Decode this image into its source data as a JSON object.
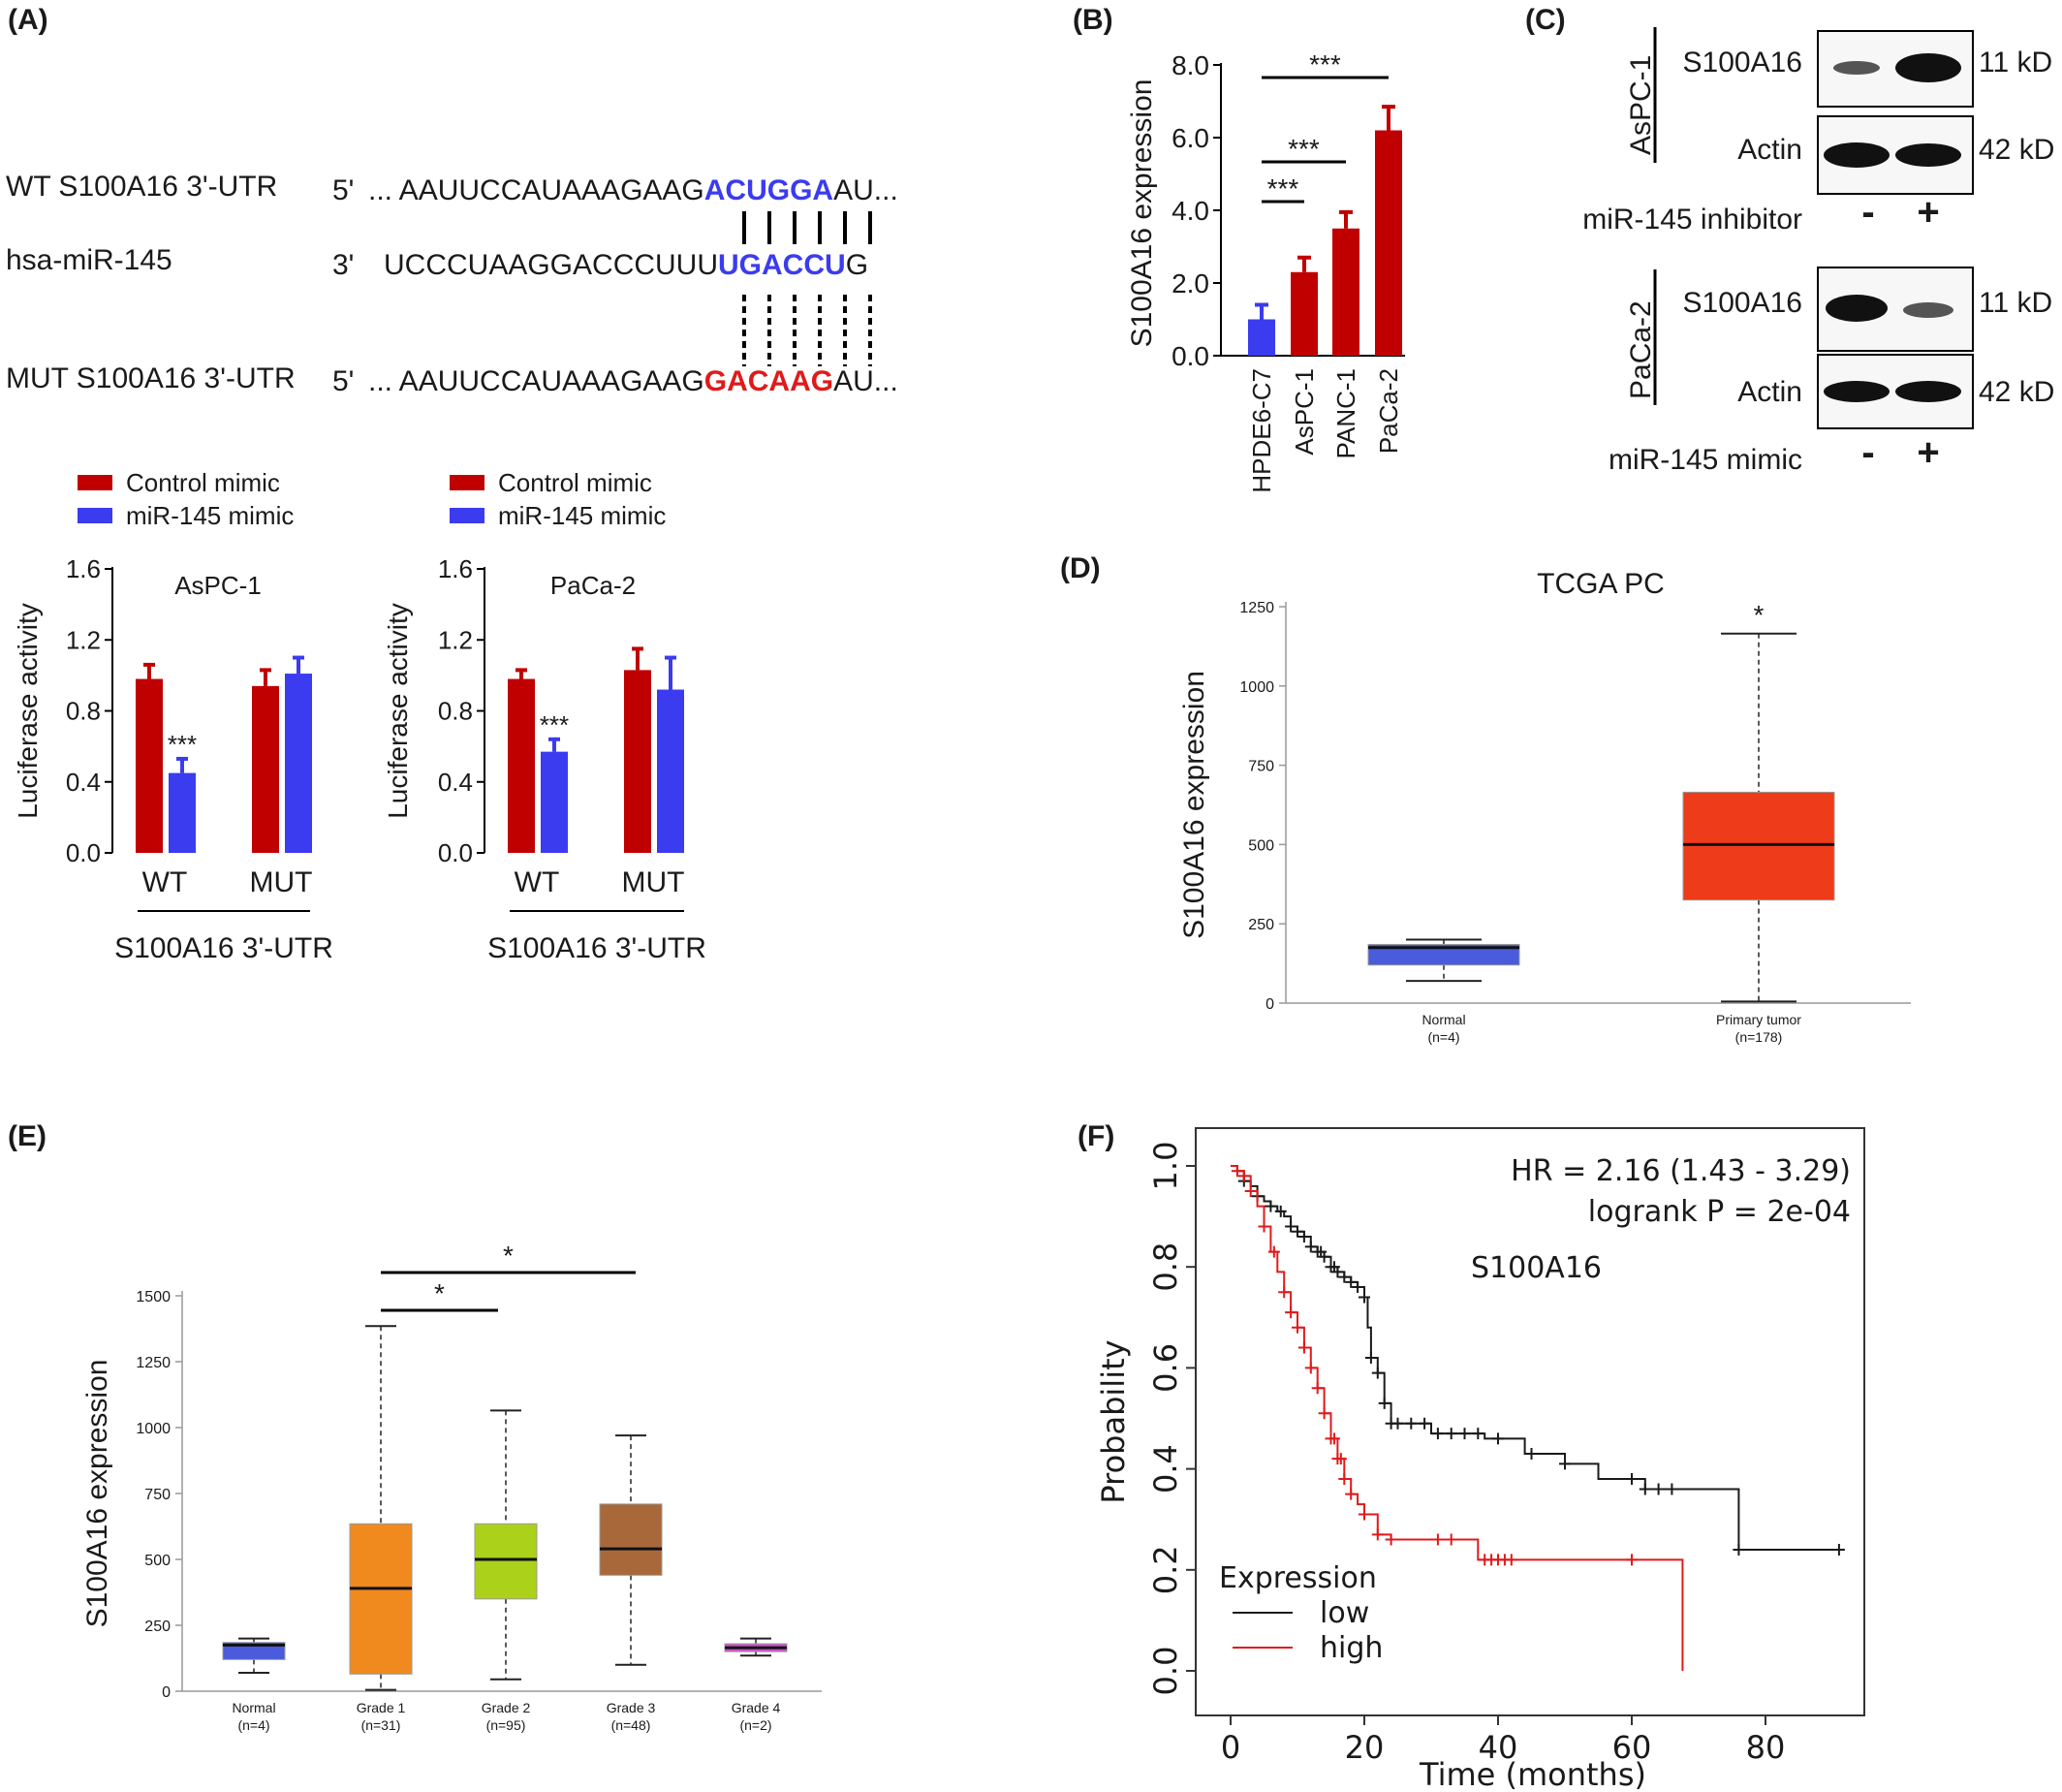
{
  "panels": {
    "A": "(A)",
    "B": "(B)",
    "C": "(C)",
    "D": "(D)",
    "E": "(E)",
    "F": "(F)"
  },
  "sequence": {
    "wt_label": "WT S100A16 3'-UTR",
    "wt_end": "5'",
    "wt_prefix": "... AAUUCCAUAAAGAAG",
    "wt_site": "ACUGGA",
    "wt_suffix": "AU...",
    "mir_label": "hsa-miR-145",
    "mir_end": "3'",
    "mir_prefix": "UCCCUAAGGACCCUUU",
    "mir_site": "UGACCU",
    "mir_suffix": "G",
    "mut_label": "MUT S100A16 3'-UTR",
    "mut_end": "5'",
    "mut_prefix": "... AAUUCCAUAAAGAAG",
    "mut_site": "GACAAG",
    "mut_suffix": "AU...",
    "colors": {
      "wt_site": "#3b3bf0",
      "mut_site": "#e01a1a"
    }
  },
  "chart_data": [
    {
      "id": "A-left",
      "type": "bar",
      "title": "AsPC-1",
      "ylabel": "Luciferase activity",
      "xlabel": "S100A16 3'-UTR",
      "ylim": [
        0,
        1.6
      ],
      "yticks": [
        "0.0",
        "0.4",
        "0.8",
        "1.2",
        "1.6"
      ],
      "categories": [
        "WT",
        "MUT"
      ],
      "series": [
        {
          "name": "Control mimic",
          "color": "#c00000",
          "values": [
            0.98,
            0.94
          ],
          "errors": [
            0.08,
            0.09
          ]
        },
        {
          "name": "miR-145 mimic",
          "color": "#3b3bf0",
          "values": [
            0.45,
            1.01
          ],
          "errors": [
            0.08,
            0.09
          ]
        }
      ],
      "annotations": [
        "***"
      ]
    },
    {
      "id": "A-right",
      "type": "bar",
      "title": "PaCa-2",
      "ylabel": "Luciferase activity",
      "xlabel": "S100A16 3'-UTR",
      "ylim": [
        0,
        1.6
      ],
      "yticks": [
        "0.0",
        "0.4",
        "0.8",
        "1.2",
        "1.6"
      ],
      "categories": [
        "WT",
        "MUT"
      ],
      "series": [
        {
          "name": "Control mimic",
          "color": "#c00000",
          "values": [
            0.98,
            1.03
          ],
          "errors": [
            0.05,
            0.12
          ]
        },
        {
          "name": "miR-145 mimic",
          "color": "#3b3bf0",
          "values": [
            0.57,
            0.92
          ],
          "errors": [
            0.07,
            0.18
          ]
        }
      ],
      "annotations": [
        "***"
      ]
    },
    {
      "id": "B",
      "type": "bar",
      "ylabel": "S100A16 expression",
      "ylim": [
        0,
        8.0
      ],
      "yticks": [
        "0.0",
        "2.0",
        "4.0",
        "6.0",
        "8.0"
      ],
      "categories": [
        "HPDE6-C7",
        "AsPC-1",
        "PANC-1",
        "PaCa-2"
      ],
      "values": [
        1.0,
        2.3,
        3.5,
        6.2
      ],
      "errors": [
        0.4,
        0.4,
        0.45,
        0.65
      ],
      "colors": [
        "#3b3bf0",
        "#c00000",
        "#c00000",
        "#c00000"
      ],
      "annotations": [
        "***",
        "***",
        "***"
      ]
    },
    {
      "id": "D",
      "type": "box",
      "title": "TCGA PC",
      "ylabel": "S100A16 expression",
      "ylim": [
        0,
        1250
      ],
      "yticks": [
        "0",
        "250",
        "500",
        "750",
        "1000",
        "1250"
      ],
      "groups": [
        {
          "name": "Normal",
          "n": "(n=4)",
          "color": "#4a5bdc",
          "min": 70,
          "q1": 120,
          "median": 175,
          "q3": 185,
          "max": 200
        },
        {
          "name": "Primary tumor",
          "n": "(n=178)",
          "color": "#ee3b1a",
          "min": 5,
          "q1": 325,
          "median": 500,
          "q3": 665,
          "max": 1165
        }
      ],
      "annotations": [
        "*"
      ]
    },
    {
      "id": "E",
      "type": "box",
      "ylabel": "S100A16 expression",
      "ylim": [
        0,
        1500
      ],
      "yticks": [
        "0",
        "250",
        "500",
        "750",
        "1000",
        "1250",
        "1500"
      ],
      "groups": [
        {
          "name": "Normal",
          "n": "(n=4)",
          "color": "#4a5bdc",
          "min": 70,
          "q1": 120,
          "median": 175,
          "q3": 185,
          "max": 200
        },
        {
          "name": "Grade 1",
          "n": "(n=31)",
          "color": "#f08a1e",
          "min": 5,
          "q1": 65,
          "median": 390,
          "q3": 635,
          "max": 1385
        },
        {
          "name": "Grade 2",
          "n": "(n=95)",
          "color": "#acd11a",
          "min": 45,
          "q1": 350,
          "median": 500,
          "q3": 635,
          "max": 1065
        },
        {
          "name": "Grade 3",
          "n": "(n=48)",
          "color": "#a8683a",
          "min": 100,
          "q1": 440,
          "median": 540,
          "q3": 710,
          "max": 970
        },
        {
          "name": "Grade 4",
          "n": "(n=2)",
          "color": "#d04fd0",
          "min": 135,
          "q1": 150,
          "median": 165,
          "q3": 180,
          "max": 200
        }
      ],
      "annotations": [
        "*",
        "*"
      ]
    },
    {
      "id": "F",
      "type": "line",
      "title": "S100A16",
      "ylabel": "Probability",
      "xlabel": "Time (months)",
      "xlim": [
        0,
        95
      ],
      "ylim": [
        0,
        1.0
      ],
      "xticks": [
        "0",
        "20",
        "40",
        "60",
        "80"
      ],
      "yticks": [
        "0.0",
        "0.2",
        "0.4",
        "0.6",
        "0.8",
        "1.0"
      ],
      "stats": [
        "HR = 2.16 (1.43 - 3.29)",
        "logrank P = 2e-04"
      ],
      "legend_title": "Expression",
      "series": [
        {
          "name": "low",
          "color": "#1a1a1a",
          "x": [
            0,
            1,
            2,
            3,
            4,
            5,
            6,
            7,
            8,
            9,
            10,
            11,
            12,
            13,
            14,
            15,
            16,
            17,
            18,
            19,
            20,
            20.5,
            21,
            22,
            23,
            24,
            26,
            30,
            34,
            38,
            44,
            50,
            55,
            62,
            67,
            72.5,
            76,
            80,
            85,
            91
          ],
          "y": [
            1.0,
            0.99,
            0.97,
            0.96,
            0.94,
            0.93,
            0.92,
            0.91,
            0.9,
            0.88,
            0.87,
            0.86,
            0.84,
            0.83,
            0.82,
            0.8,
            0.79,
            0.78,
            0.77,
            0.76,
            0.74,
            0.68,
            0.62,
            0.59,
            0.53,
            0.49,
            0.49,
            0.47,
            0.47,
            0.46,
            0.43,
            0.41,
            0.38,
            0.36,
            0.36,
            0.36,
            0.24,
            0.24,
            0.24,
            0.24
          ],
          "censored_x": [
            2,
            4,
            6,
            7.5,
            9,
            10,
            11,
            12,
            13,
            13.5,
            14,
            15,
            15.5,
            16,
            17,
            18,
            19,
            20,
            21,
            22,
            23,
            24,
            25,
            27,
            29,
            31,
            33,
            35,
            37,
            40,
            45,
            50,
            60,
            62,
            64,
            66,
            76,
            91
          ]
        },
        {
          "name": "high",
          "color": "#e01a1a",
          "x": [
            0,
            1,
            2,
            3,
            4,
            5,
            6,
            7,
            8,
            9,
            10,
            11,
            12,
            13,
            14,
            15,
            16,
            17,
            18,
            19,
            20,
            22,
            24,
            28,
            32,
            37,
            40,
            50,
            60,
            67.5,
            67.6
          ],
          "y": [
            1.0,
            0.99,
            0.98,
            0.95,
            0.92,
            0.88,
            0.83,
            0.79,
            0.75,
            0.71,
            0.68,
            0.64,
            0.6,
            0.56,
            0.51,
            0.46,
            0.42,
            0.38,
            0.35,
            0.33,
            0.31,
            0.27,
            0.26,
            0.26,
            0.26,
            0.22,
            0.22,
            0.22,
            0.22,
            0.22,
            0.0
          ],
          "censored_x": [
            1,
            2,
            3,
            5,
            6.5,
            8,
            9,
            10,
            11,
            12,
            13,
            14,
            15,
            15.5,
            16,
            16.5,
            17,
            18,
            20,
            22,
            24,
            31,
            33,
            38,
            39,
            40,
            41,
            42,
            60
          ]
        }
      ]
    }
  ],
  "blots": {
    "aspc1": {
      "cell": "AsPC-1",
      "row1": "S100A16",
      "row2": "Actin",
      "size1": "11 kD",
      "size2": "42 kD",
      "treatment": "miR-145 inhibitor",
      "lanes": [
        "-",
        "+"
      ]
    },
    "paca2": {
      "cell": "PaCa-2",
      "row1": "S100A16",
      "row2": "Actin",
      "size1": "11 kD",
      "size2": "42 kD",
      "treatment": "miR-145 mimic",
      "lanes": [
        "-",
        "+"
      ]
    }
  }
}
